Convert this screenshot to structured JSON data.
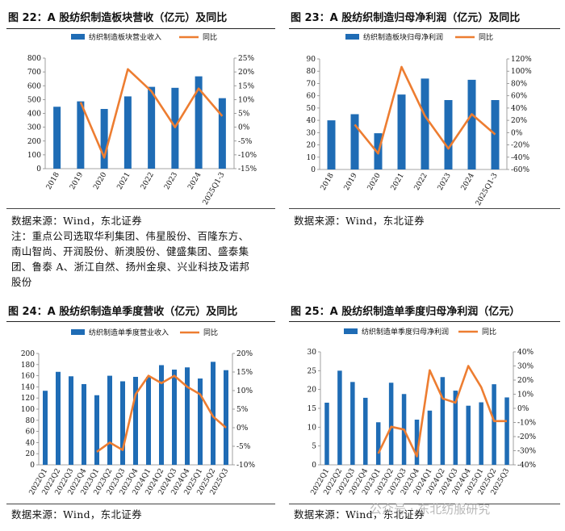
{
  "chart_data": [
    {
      "id": "c22",
      "type": "bar+line",
      "title": "图 22：A 股纺织制造板块营收（亿元）及同比",
      "categories": [
        "2018",
        "2019",
        "2020",
        "2021",
        "2022",
        "2023",
        "2024",
        "2025Q1-3"
      ],
      "series": [
        {
          "name": "纺织制造板块营业收入",
          "kind": "bar",
          "axis": "left",
          "values": [
            448,
            487,
            432,
            523,
            592,
            585,
            668,
            510
          ]
        },
        {
          "name": "同比",
          "kind": "line",
          "axis": "right",
          "values": [
            null,
            9,
            -11,
            21,
            13,
            0,
            14,
            4
          ]
        }
      ],
      "ylim": [
        0,
        800
      ],
      "yticks": [
        0,
        100,
        200,
        300,
        400,
        500,
        600,
        700,
        800
      ],
      "y2lim": [
        -15,
        25
      ],
      "y2ticks": [
        -15,
        -10,
        -5,
        0,
        5,
        10,
        15,
        20,
        25
      ],
      "y2fmt": "%",
      "xlabel": "",
      "ylabel": "",
      "legend": "top"
    },
    {
      "id": "c23",
      "type": "bar+line",
      "title": "图 23：A 股纺织制造归母净利润（亿元）及同比",
      "categories": [
        "2018",
        "2019",
        "2020",
        "2021",
        "2022",
        "2023",
        "2024",
        "2025Q1-3"
      ],
      "series": [
        {
          "name": "纺织制造板块归母净利润",
          "kind": "bar",
          "axis": "left",
          "values": [
            40,
            45,
            29.5,
            61,
            74,
            56.5,
            73,
            56.5
          ]
        },
        {
          "name": "同比",
          "kind": "line",
          "axis": "right",
          "values": [
            null,
            13,
            -34,
            107,
            27,
            -26,
            30,
            -3
          ]
        }
      ],
      "ylim": [
        0,
        90
      ],
      "yticks": [
        0,
        10,
        20,
        30,
        40,
        50,
        60,
        70,
        80,
        90
      ],
      "y2lim": [
        -60,
        120
      ],
      "y2ticks": [
        -60,
        -40,
        -20,
        0,
        20,
        40,
        60,
        80,
        100,
        120
      ],
      "y2fmt": "%",
      "xlabel": "",
      "ylabel": "",
      "legend": "top"
    },
    {
      "id": "c24",
      "type": "bar+line",
      "title": "图 24：A 股纺织制造单季度营收（亿元）及同比",
      "categories": [
        "2022Q1",
        "2022Q2",
        "2022Q3",
        "2022Q4",
        "2023Q1",
        "2023Q2",
        "2023Q3",
        "2023Q4",
        "2024Q1",
        "2024Q2",
        "2024Q3",
        "2024Q4",
        "2025Q1",
        "2025Q2",
        "2025Q3"
      ],
      "series": [
        {
          "name": "纺织制造单季度营业收入",
          "kind": "bar",
          "axis": "left",
          "values": [
            133,
            167,
            159,
            145,
            125,
            160,
            150,
            158,
            158,
            179,
            171,
            175,
            155,
            185,
            170
          ]
        },
        {
          "name": "同比",
          "kind": "line",
          "axis": "right",
          "values": [
            null,
            null,
            null,
            null,
            -6.5,
            -4,
            -6,
            9,
            14,
            12,
            14,
            11,
            9,
            3,
            0
          ]
        }
      ],
      "ylim": [
        0,
        200
      ],
      "yticks": [
        0,
        20,
        40,
        60,
        80,
        100,
        120,
        140,
        160,
        180,
        200
      ],
      "y2lim": [
        -10,
        20
      ],
      "y2ticks": [
        -10,
        -5,
        0,
        5,
        10,
        15,
        20
      ],
      "y2fmt": "%",
      "xlabel": "",
      "ylabel": "",
      "legend": "top"
    },
    {
      "id": "c25",
      "type": "bar+line",
      "title": "图 25：A 股纺织制造单季度归母净利润（亿元）",
      "categories": [
        "2022Q1",
        "2022Q2",
        "2022Q3",
        "2022Q4",
        "2023Q1",
        "2023Q2",
        "2023Q3",
        "2023Q4",
        "2024Q1",
        "2024Q2",
        "2024Q3",
        "2024Q4",
        "2025Q1",
        "2025Q2",
        "2025Q3"
      ],
      "series": [
        {
          "name": "纺织制造单季度归母净利润",
          "kind": "bar",
          "axis": "left",
          "values": [
            16.5,
            25,
            22,
            17.8,
            11.3,
            21.8,
            18.8,
            12,
            14.4,
            23.3,
            19.7,
            15.7,
            16.6,
            21.4,
            17.9
          ]
        },
        {
          "name": "同比",
          "kind": "line",
          "axis": "right",
          "values": [
            null,
            null,
            null,
            null,
            -32,
            -13,
            -15,
            -34,
            27,
            7,
            4,
            30,
            15,
            -9,
            -9
          ]
        }
      ],
      "ylim": [
        0,
        30
      ],
      "yticks": [
        0,
        5,
        10,
        15,
        20,
        25,
        30
      ],
      "y2lim": [
        -40,
        40
      ],
      "y2ticks": [
        -40,
        -30,
        -20,
        -10,
        0,
        10,
        20,
        30,
        40
      ],
      "y2fmt": "%",
      "xlabel": "",
      "ylabel": "",
      "legend": "top"
    }
  ],
  "notes": {
    "source_22": "数据来源：Wind，东北证券",
    "note_22_l1": "注：重点公司选取华利集团、伟星股份、百隆东方、",
    "note_22_l2": "南山智尚、开润股份、新澳股份、健盛集团、盛泰集",
    "note_22_l3": "团、鲁泰 A、浙江自然、扬州金泉、兴业科技及诺邦",
    "note_22_l4": "股份",
    "source_23": "数据来源：Wind，东北证券",
    "source_24": "数据来源：Wind，东北证券",
    "source_25": "数据来源：Wind，东北证券"
  },
  "watermark": "公众号 · 东北纺服研究",
  "colors": {
    "bar": "#1f6cb5",
    "line": "#ed7d31",
    "grid": "#888888",
    "text": "#111111"
  }
}
